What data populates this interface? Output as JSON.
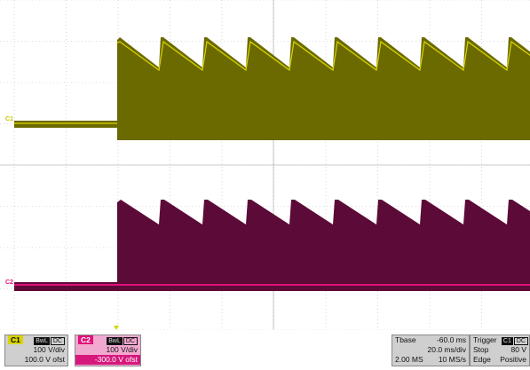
{
  "scope": {
    "grid_color": "#bcbcbc",
    "trace1_color": "#6b6a00",
    "trace1_highlight": "#d9d400",
    "trace2_color": "#5c0a37",
    "trace2_line": "#e0127a",
    "c1_tag": "C1",
    "c2_tag": "C2"
  },
  "channel1": {
    "label": "C1",
    "bwl": "BwL",
    "coupling": "DC",
    "volts_div": "100 V/div",
    "offset": "100.0 V ofst"
  },
  "channel2": {
    "label": "C2",
    "bwl": "BwL",
    "coupling": "DC",
    "volts_div": "100 V/div",
    "offset": "-300.0 V ofst"
  },
  "timebase": {
    "label": "Tbase",
    "delay": "-60.0 ms",
    "time_div": "20.0 ms/div",
    "memory": "2.00 MS",
    "sample_rate": "10 MS/s"
  },
  "trigger": {
    "label": "Trigger",
    "source": "C1",
    "coupling": "DC",
    "mode": "Stop",
    "level": "80 V",
    "type": "Edge",
    "slope": "Positive"
  }
}
